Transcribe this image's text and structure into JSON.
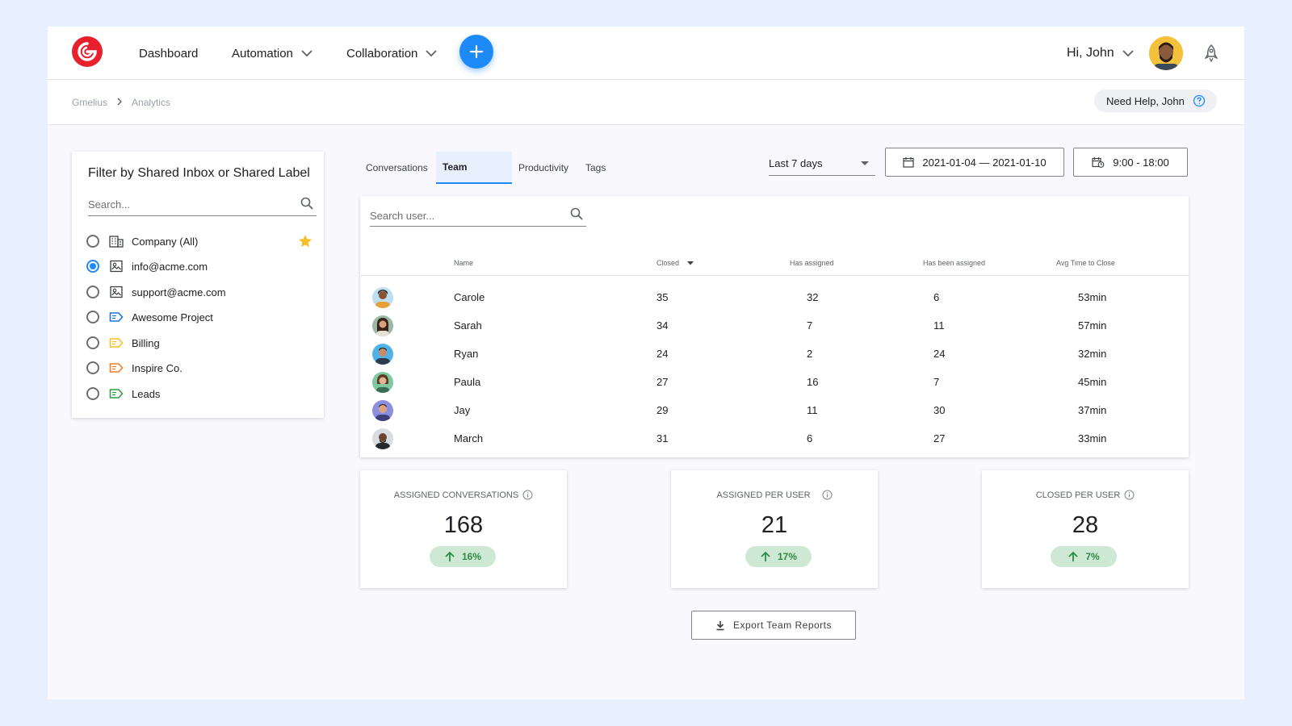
{
  "nav": {
    "dashboard": "Dashboard",
    "automation": "Automation",
    "collaboration": "Collaboration",
    "greeting": "Hi, John"
  },
  "breadcrumb": {
    "root": "Gmelius",
    "current": "Analytics"
  },
  "help": {
    "label": "Need Help, John"
  },
  "filter": {
    "title": "Filter by Shared Inbox or Shared Label",
    "search_placeholder": "Search...",
    "items": [
      {
        "label": "Company (All)",
        "icon": "building-icon",
        "selected": false,
        "starred": true
      },
      {
        "label": "info@acme.com",
        "icon": "inbox-icon",
        "selected": true
      },
      {
        "label": "support@acme.com",
        "icon": "inbox-icon",
        "selected": false
      },
      {
        "label": "Awesome Project",
        "icon": "label-icon",
        "color": "#1a73e8",
        "selected": false
      },
      {
        "label": "Billing",
        "icon": "label-icon",
        "color": "#f6bf26",
        "selected": false
      },
      {
        "label": "Inspire Co.",
        "icon": "label-icon",
        "color": "#f57c23",
        "selected": false
      },
      {
        "label": "Leads",
        "icon": "label-icon",
        "color": "#2e9e44",
        "selected": false
      }
    ]
  },
  "tabs": [
    {
      "label": "Conversations",
      "active": false
    },
    {
      "label": "Team",
      "active": true
    },
    {
      "label": "Productivity",
      "active": false
    },
    {
      "label": "Tags",
      "active": false
    }
  ],
  "range": {
    "selected": "Last 7 days",
    "dates": "2021-01-04 — 2021-01-10",
    "hours": "9:00 - 18:00"
  },
  "team_table": {
    "search_placeholder": "Search user...",
    "columns": [
      "Name",
      "Closed",
      "Has assigned",
      "Has been assigned",
      "Avg Time to Close"
    ],
    "rows": [
      {
        "name": "Carole",
        "closed": "35",
        "has_assigned": "32",
        "been_assigned": "6",
        "avg": "53min"
      },
      {
        "name": "Sarah",
        "closed": "34",
        "has_assigned": "7",
        "been_assigned": "11",
        "avg": "57min"
      },
      {
        "name": "Ryan",
        "closed": "24",
        "has_assigned": "2",
        "been_assigned": "24",
        "avg": "32min"
      },
      {
        "name": "Paula",
        "closed": "27",
        "has_assigned": "16",
        "been_assigned": "7",
        "avg": "45min"
      },
      {
        "name": "Jay",
        "closed": "29",
        "has_assigned": "11",
        "been_assigned": "30",
        "avg": "37min"
      },
      {
        "name": "March",
        "closed": "31",
        "has_assigned": "6",
        "been_assigned": "27",
        "avg": "33min"
      }
    ]
  },
  "stats": [
    {
      "label": "ASSIGNED CONVERSATIONS",
      "value": "168",
      "change": "16%"
    },
    {
      "label": "ASSIGNED PER USER",
      "value": "21",
      "change": "17%"
    },
    {
      "label": "CLOSED PER USER",
      "value": "28",
      "change": "7%"
    }
  ],
  "export": {
    "label": "Export Team Reports"
  },
  "colors": {
    "accent": "#1e8af7",
    "brand": "#e8202e",
    "positive": "#2e8b45"
  }
}
